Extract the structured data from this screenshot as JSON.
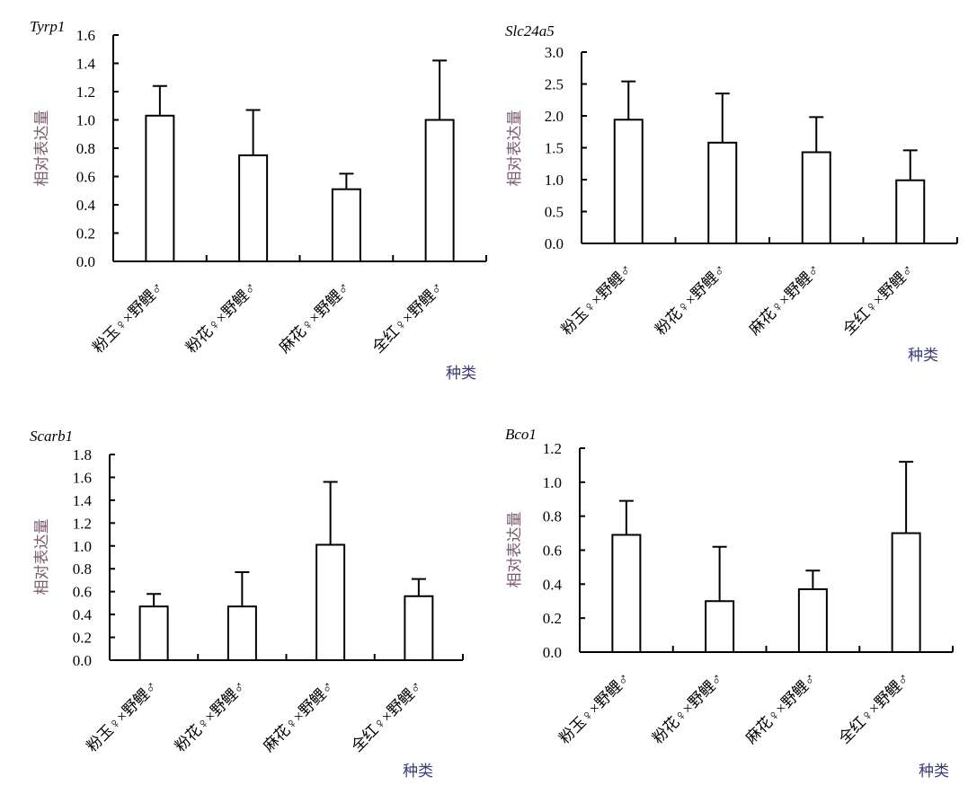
{
  "chart_data": [
    {
      "type": "bar",
      "title": "Tyrp1",
      "xlabel": "种类",
      "ylabel": "相对表达量",
      "categories": [
        "粉玉♀×野鲤♂",
        "粉花♀×野鲤♂",
        "麻花♀×野鲤♂",
        "全红♀×野鲤♂"
      ],
      "values": [
        1.03,
        0.75,
        0.51,
        1.0
      ],
      "error_upper": [
        1.24,
        1.07,
        0.62,
        1.42
      ],
      "ylim": [
        0,
        1.6
      ],
      "yticks": [
        "0.0",
        "0.2",
        "0.4",
        "0.6",
        "0.8",
        "1.0",
        "1.2",
        "1.4",
        "1.6"
      ],
      "grid": false
    },
    {
      "type": "bar",
      "title": "Slc24a5",
      "xlabel": "种类",
      "ylabel": "相对表达量",
      "categories": [
        "粉玉♀×野鲤♂",
        "粉花♀×野鲤♂",
        "麻花♀×野鲤♂",
        "全红♀×野鲤♂"
      ],
      "values": [
        1.94,
        1.58,
        1.43,
        0.99
      ],
      "error_upper": [
        2.54,
        2.35,
        1.98,
        1.46
      ],
      "ylim": [
        0,
        3.0
      ],
      "yticks": [
        "0.0",
        "0.5",
        "1.0",
        "1.5",
        "2.0",
        "2.5",
        "3.0"
      ],
      "grid": false
    },
    {
      "type": "bar",
      "title": "Scarb1",
      "xlabel": "种类",
      "ylabel": "相对表达量",
      "categories": [
        "粉玉♀×野鲤♂",
        "粉花♀×野鲤♂",
        "麻花♀×野鲤♂",
        "全红♀×野鲤♂"
      ],
      "values": [
        0.47,
        0.47,
        1.01,
        0.56
      ],
      "error_upper": [
        0.58,
        0.77,
        1.56,
        0.71
      ],
      "ylim": [
        0,
        1.8
      ],
      "yticks": [
        "0.0",
        "0.2",
        "0.4",
        "0.6",
        "0.8",
        "1.0",
        "1.2",
        "1.4",
        "1.6",
        "1.8"
      ],
      "grid": false
    },
    {
      "type": "bar",
      "title": "Bco1",
      "xlabel": "种类",
      "ylabel": "相对表达量",
      "categories": [
        "粉玉♀×野鲤♂",
        "粉花♀×野鲤♂",
        "麻花♀×野鲤♂",
        "全红♀×野鲤♂"
      ],
      "values": [
        0.69,
        0.3,
        0.37,
        0.7
      ],
      "error_upper": [
        0.89,
        0.62,
        0.48,
        1.12
      ],
      "ylim": [
        0,
        1.2
      ],
      "yticks": [
        "0.0",
        "0.2",
        "0.4",
        "0.6",
        "0.8",
        "1.0",
        "1.2"
      ],
      "grid": false
    }
  ]
}
